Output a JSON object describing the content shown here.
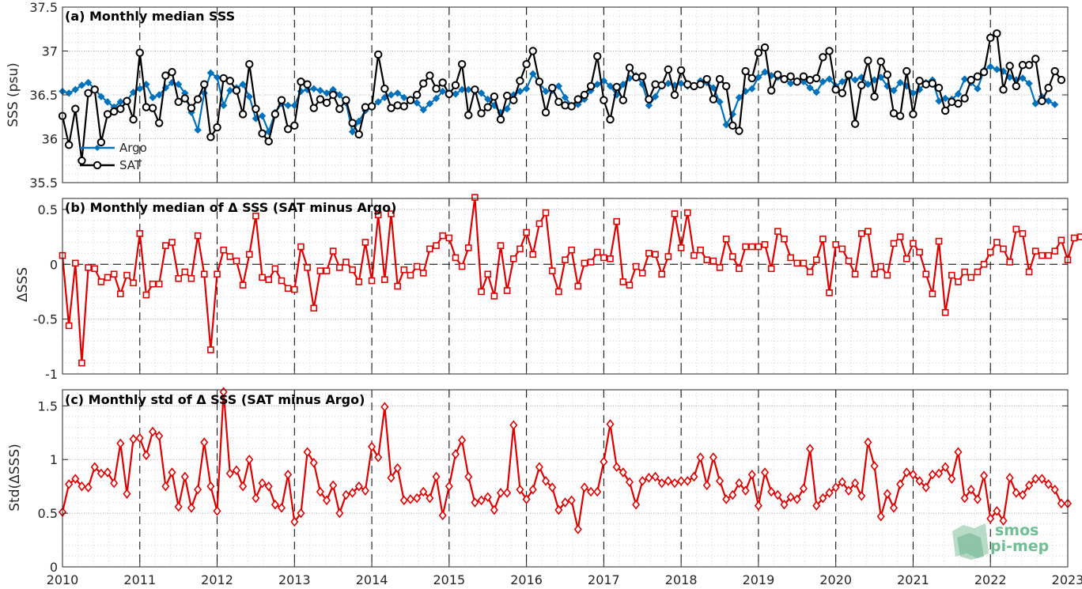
{
  "chart_data": [
    {
      "type": "line",
      "title": "(a) Monthly median SSS",
      "ylabel": "SSS (psu)",
      "xlim": [
        2010,
        2023
      ],
      "ylim": [
        35.5,
        37.5
      ],
      "xticks": [
        "2010",
        "2011",
        "2012",
        "2013",
        "2014",
        "2015",
        "2016",
        "2017",
        "2018",
        "2019",
        "2020",
        "2021",
        "2022",
        "2023"
      ],
      "yticks": [
        "35.5",
        "36",
        "36.5",
        "37",
        "37.5"
      ],
      "grid": true,
      "legend_position": "bottom-left",
      "x_start": 2010.0,
      "x_step_months": 1,
      "series": [
        {
          "name": "Argo",
          "color": "#0072BD",
          "marker": "diamond",
          "values": [
            36.54,
            36.52,
            36.56,
            36.61,
            36.64,
            36.57,
            36.48,
            36.42,
            36.36,
            36.42,
            36.44,
            36.53,
            36.57,
            36.62,
            36.47,
            36.5,
            36.58,
            36.64,
            36.62,
            36.52,
            36.3,
            36.1,
            36.52,
            36.75,
            36.7,
            36.38,
            36.55,
            36.58,
            36.62,
            36.48,
            36.23,
            36.26,
            36.08,
            36.3,
            36.4,
            36.38,
            36.38,
            36.54,
            36.56,
            36.57,
            36.55,
            36.52,
            36.56,
            36.5,
            36.41,
            36.08,
            36.2,
            36.32,
            36.36,
            36.42,
            36.47,
            36.5,
            36.52,
            36.47,
            36.45,
            36.41,
            36.33,
            36.4,
            36.46,
            36.54,
            36.53,
            36.51,
            36.56,
            36.56,
            36.54,
            36.52,
            36.45,
            36.38,
            36.3,
            36.34,
            36.5,
            36.54,
            36.57,
            36.74,
            36.64,
            36.54,
            36.55,
            36.6,
            36.47,
            36.38,
            36.39,
            36.45,
            36.55,
            36.62,
            36.66,
            36.6,
            36.5,
            36.62,
            36.69,
            36.72,
            36.62,
            36.38,
            36.48,
            36.61,
            36.63,
            36.61,
            36.63,
            36.6,
            36.6,
            36.66,
            36.64,
            36.58,
            36.42,
            36.16,
            36.28,
            36.47,
            36.54,
            36.57,
            36.7,
            36.76,
            36.72,
            36.7,
            36.68,
            36.63,
            36.66,
            36.65,
            36.58,
            36.53,
            36.65,
            36.68,
            36.6,
            36.65,
            36.7,
            36.67,
            36.7,
            36.62,
            36.67,
            36.7,
            36.6,
            36.55,
            36.64,
            36.6,
            36.52,
            36.56,
            36.64,
            36.67,
            36.43,
            36.46,
            36.45,
            36.51,
            36.68,
            36.64,
            36.57,
            36.78,
            36.82,
            36.79,
            36.77,
            36.7,
            36.67,
            36.69,
            36.63,
            36.4,
            36.48,
            36.43,
            36.39
          ]
        },
        {
          "name": "SAT",
          "color": "#000000",
          "marker": "circle",
          "values": [
            36.26,
            35.93,
            36.34,
            35.75,
            36.52,
            36.56,
            35.96,
            36.28,
            36.31,
            36.34,
            36.43,
            36.22,
            36.98,
            36.36,
            36.35,
            36.18,
            36.72,
            36.76,
            36.42,
            36.46,
            36.35,
            36.45,
            36.62,
            36.02,
            36.13,
            36.69,
            36.66,
            36.55,
            36.28,
            36.85,
            36.34,
            36.06,
            35.97,
            36.28,
            36.44,
            36.11,
            36.15,
            36.65,
            36.62,
            36.35,
            36.45,
            36.41,
            36.5,
            36.34,
            36.44,
            36.18,
            36.05,
            36.36,
            36.37,
            36.96,
            36.57,
            36.35,
            36.38,
            36.37,
            36.44,
            36.5,
            36.63,
            36.72,
            36.57,
            36.64,
            36.51,
            36.61,
            36.85,
            36.27,
            36.56,
            36.29,
            36.36,
            36.48,
            36.22,
            36.49,
            36.44,
            36.66,
            36.85,
            37.0,
            36.65,
            36.3,
            36.58,
            36.42,
            36.38,
            36.37,
            36.45,
            36.5,
            36.6,
            36.94,
            36.44,
            36.22,
            36.59,
            36.44,
            36.81,
            36.7,
            36.71,
            36.45,
            36.62,
            36.61,
            36.79,
            36.5,
            36.78,
            36.62,
            36.6,
            36.62,
            36.68,
            36.45,
            36.68,
            36.6,
            36.15,
            36.09,
            36.77,
            36.69,
            36.98,
            37.04,
            36.55,
            36.73,
            36.68,
            36.71,
            36.65,
            36.71,
            36.67,
            36.69,
            36.93,
            37.0,
            36.56,
            36.52,
            36.73,
            36.17,
            36.61,
            36.89,
            36.48,
            36.88,
            36.73,
            36.29,
            36.26,
            36.77,
            36.28,
            36.66,
            36.62,
            36.63,
            36.58,
            36.32,
            36.42,
            36.4,
            36.46,
            36.67,
            36.71,
            36.76,
            37.15,
            37.2,
            36.56,
            36.83,
            36.6,
            36.84,
            36.84,
            36.91,
            36.43,
            36.58,
            36.77,
            36.67
          ]
        }
      ]
    },
    {
      "type": "line",
      "title": "(b) Monthly median of Δ SSS (SAT minus Argo)",
      "ylabel": "ΔSSS",
      "xlim": [
        2010,
        2023
      ],
      "ylim": [
        -1,
        0.6
      ],
      "yticks": [
        "-1",
        "-0.5",
        "0",
        "0.5"
      ],
      "grid": true,
      "x_start": 2010.0,
      "x_step_months": 1,
      "series": [
        {
          "name": "",
          "color": "#E00000",
          "marker": "square",
          "values": [
            0.08,
            -0.56,
            0.01,
            -0.9,
            -0.03,
            -0.04,
            -0.16,
            -0.12,
            -0.09,
            -0.27,
            -0.1,
            -0.17,
            0.28,
            -0.28,
            -0.18,
            -0.18,
            0.17,
            0.2,
            -0.13,
            -0.07,
            -0.13,
            0.26,
            -0.09,
            -0.78,
            -0.09,
            0.13,
            0.07,
            0.03,
            -0.19,
            0.09,
            0.44,
            -0.12,
            -0.14,
            -0.04,
            -0.15,
            -0.22,
            -0.23,
            0.16,
            -0.03,
            -0.4,
            -0.06,
            -0.06,
            0.12,
            -0.03,
            0.02,
            -0.05,
            -0.16,
            0.2,
            -0.15,
            0.45,
            -0.14,
            0.46,
            -0.2,
            -0.05,
            -0.1,
            -0.02,
            -0.08,
            0.14,
            0.17,
            0.26,
            0.24,
            0.06,
            -0.02,
            0.15,
            0.61,
            -0.25,
            -0.09,
            -0.29,
            0.17,
            -0.24,
            0.05,
            0.14,
            0.29,
            0.09,
            0.37,
            0.47,
            -0.06,
            -0.25,
            0.04,
            0.13,
            -0.2,
            0.01,
            0.02,
            0.11,
            0.06,
            0.05,
            0.39,
            -0.16,
            -0.19,
            -0.02,
            -0.08,
            0.1,
            0.09,
            -0.09,
            0.07,
            0.46,
            0.15,
            0.47,
            0.08,
            0.13,
            0.04,
            0.03,
            -0.03,
            0.23,
            0.07,
            -0.04,
            0.16,
            0.16,
            0.16,
            0.18,
            -0.04,
            0.3,
            0.23,
            0.06,
            0.01,
            0.01,
            -0.07,
            0.04,
            0.23,
            -0.26,
            0.18,
            0.14,
            0.03,
            -0.09,
            0.28,
            0.3,
            -0.09,
            -0.02,
            -0.1,
            0.19,
            0.25,
            0.05,
            0.19,
            0.11,
            -0.09,
            -0.27,
            0.21,
            -0.44,
            -0.1,
            -0.16,
            -0.07,
            -0.12,
            -0.07,
            0.0,
            0.11,
            0.2,
            0.14,
            0.02,
            0.32,
            0.28,
            -0.07,
            0.12,
            0.08,
            0.08,
            0.12,
            0.22,
            0.04,
            0.24,
            0.25
          ]
        }
      ]
    },
    {
      "type": "line",
      "title": "(c) Monthly std of Δ SSS (SAT minus Argo)",
      "ylabel": "Std(ΔSSS)",
      "xlim": [
        2010,
        2023
      ],
      "ylim": [
        0,
        1.65
      ],
      "yticks": [
        "0",
        "0.5",
        "1",
        "1.5"
      ],
      "grid": true,
      "x_start": 2010.0,
      "x_step_months": 1,
      "series": [
        {
          "name": "",
          "color": "#E00000",
          "marker": "diamond",
          "values": [
            0.51,
            0.77,
            0.82,
            0.75,
            0.74,
            0.93,
            0.87,
            0.88,
            0.78,
            1.15,
            0.68,
            1.19,
            1.2,
            1.04,
            1.26,
            1.22,
            0.75,
            0.88,
            0.56,
            0.84,
            0.55,
            0.72,
            1.16,
            0.75,
            0.52,
            1.63,
            0.87,
            0.9,
            0.75,
            1.0,
            0.64,
            0.78,
            0.75,
            0.58,
            0.55,
            0.86,
            0.42,
            0.5,
            1.07,
            0.97,
            0.7,
            0.62,
            0.76,
            0.5,
            0.67,
            0.69,
            0.75,
            0.71,
            1.12,
            1.02,
            1.49,
            0.83,
            0.92,
            0.62,
            0.63,
            0.64,
            0.7,
            0.64,
            0.84,
            0.48,
            0.75,
            1.05,
            1.18,
            0.84,
            0.6,
            0.62,
            0.65,
            0.53,
            0.69,
            0.69,
            1.32,
            0.72,
            0.63,
            0.72,
            0.93,
            0.8,
            0.74,
            0.53,
            0.6,
            0.62,
            0.35,
            0.74,
            0.7,
            0.7,
            0.98,
            1.33,
            0.93,
            0.88,
            0.79,
            0.58,
            0.8,
            0.83,
            0.84,
            0.78,
            0.8,
            0.78,
            0.8,
            0.8,
            0.84,
            1.02,
            0.76,
            1.02,
            0.8,
            0.63,
            0.67,
            0.78,
            0.71,
            0.86,
            0.57,
            0.88,
            0.7,
            0.67,
            0.58,
            0.65,
            0.63,
            0.73,
            1.1,
            0.57,
            0.64,
            0.69,
            0.74,
            0.79,
            0.71,
            0.78,
            0.66,
            1.16,
            0.94,
            0.47,
            0.68,
            0.55,
            0.77,
            0.88,
            0.86,
            0.8,
            0.74,
            0.86,
            0.87,
            0.93,
            0.82,
            1.07,
            0.64,
            0.72,
            0.63,
            0.85,
            0.45,
            0.52,
            0.43,
            0.83,
            0.69,
            0.67,
            0.76,
            0.82,
            0.82,
            0.77,
            0.72,
            0.59,
            0.59
          ]
        }
      ]
    }
  ],
  "logo": {
    "line1": "smos",
    "line2": "pi-mep"
  }
}
